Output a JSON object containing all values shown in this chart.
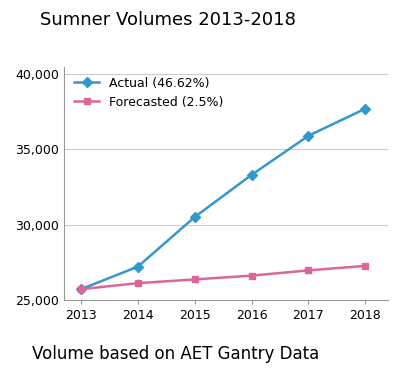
{
  "title": "Sumner Volumes 2013-2018",
  "subtitle": "Volume based on AET Gantry Data",
  "years": [
    2013,
    2014,
    2015,
    2016,
    2017,
    2018
  ],
  "actual": [
    25700,
    27200,
    30500,
    33300,
    35900,
    37700
  ],
  "forecasted": [
    25700,
    26100,
    26350,
    26600,
    26950,
    27250
  ],
  "actual_label": "Actual (46.62%)",
  "forecasted_label": "Forecasted (2.5%)",
  "actual_color": "#3399CC",
  "forecasted_color": "#DD6699",
  "ylim": [
    25000,
    40500
  ],
  "yticks": [
    25000,
    30000,
    35000,
    40000
  ],
  "bg_color": "#ffffff",
  "title_fontsize": 13,
  "subtitle_fontsize": 12,
  "legend_fontsize": 9,
  "axis_fontsize": 9
}
